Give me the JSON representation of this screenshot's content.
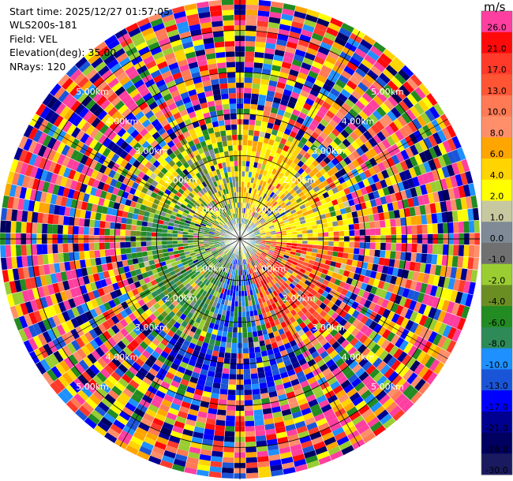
{
  "header": {
    "start_time": "Start time: 2025/12/27 01:57:05",
    "instrument": "WLS200s-181",
    "field": "Field: VEL",
    "elevation": "Elevation(deg): 35.00",
    "nrays": "NRays: 120"
  },
  "colorbar": {
    "unit": "m/s",
    "bins": [
      {
        "label": "26.0",
        "color": "#ff3fa0"
      },
      {
        "label": "21.0",
        "color": "#ff0a0a"
      },
      {
        "label": "17.0",
        "color": "#ff3a2a"
      },
      {
        "label": "13.0",
        "color": "#ff5535"
      },
      {
        "label": "10.0",
        "color": "#ff7a55"
      },
      {
        "label": "8.0",
        "color": "#ff8f6a"
      },
      {
        "label": "6.0",
        "color": "#ffa500"
      },
      {
        "label": "4.0",
        "color": "#ffd400"
      },
      {
        "label": "2.0",
        "color": "#ffff00"
      },
      {
        "label": "1.0",
        "color": "#c8c8a0"
      },
      {
        "label": "0.0",
        "color": "#7f8a96"
      },
      {
        "label": "-1.0",
        "color": "#707070"
      },
      {
        "label": "-2.0",
        "color": "#9acd32"
      },
      {
        "label": "-4.0",
        "color": "#6b8e23"
      },
      {
        "label": "-6.0",
        "color": "#228b22"
      },
      {
        "label": "-8.0",
        "color": "#2e8b57"
      },
      {
        "label": "-10.0",
        "color": "#1e90ff"
      },
      {
        "label": "-13.0",
        "color": "#1a55d8"
      },
      {
        "label": "-17.0",
        "color": "#0000ff"
      },
      {
        "label": "-21.0",
        "color": "#000090"
      },
      {
        "label": "-26.0",
        "color": "#000060"
      },
      {
        "label": "-30.0",
        "color": "#1a1a60"
      }
    ]
  },
  "chart_data": {
    "type": "heatmap",
    "projection": "PPI polar",
    "field": "VEL",
    "nrays": 120,
    "elevation_deg": 35.0,
    "range_ring_labels": [
      "1.00km",
      "2.00km",
      "3.00km",
      "4.00km",
      "5.00km"
    ],
    "inner_region_description": "near-field dominated by yellow (+2 to +4 m/s) to the north-east, orange/red (+13 to +21 m/s) to the south-east, green/olive (-4 to -8 m/s) to the south and west; outer ranges noisy",
    "colorbar_ticks": [
      "26.0",
      "21.0",
      "17.0",
      "13.0",
      "10.0",
      "8.0",
      "6.0",
      "4.0",
      "2.0",
      "1.0",
      "0.0",
      "-1.0",
      "-2.0",
      "-4.0",
      "-6.0",
      "-8.0",
      "-10.0",
      "-13.0",
      "-17.0",
      "-21.0",
      "-26.0",
      "-30.0"
    ]
  }
}
